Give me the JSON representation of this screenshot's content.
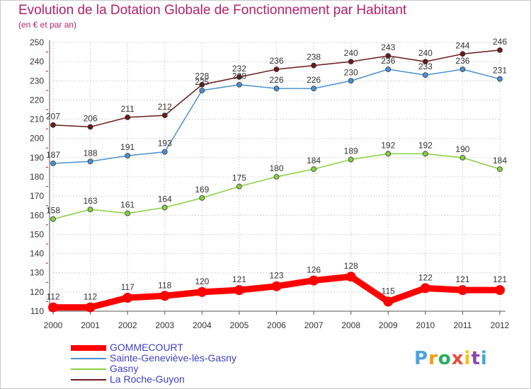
{
  "chart_data": {
    "type": "line",
    "title": "Evolution de la Dotation Globale de Fonctionnement par Habitant",
    "subtitle": "(en € et par an)",
    "x": [
      "2000",
      "2001",
      "2002",
      "2003",
      "2004",
      "2005",
      "2006",
      "2007",
      "2008",
      "2009",
      "2010",
      "2011",
      "2012"
    ],
    "ylim": [
      110,
      250
    ],
    "yticks": [
      110,
      120,
      130,
      140,
      150,
      160,
      170,
      180,
      190,
      200,
      210,
      220,
      230,
      240,
      250
    ],
    "grid": true,
    "legend_position": "bottom-left",
    "series": [
      {
        "name": "GOMMECOURT",
        "color": "#ff0000",
        "values": [
          112,
          112,
          117,
          118,
          120,
          121,
          123,
          126,
          128,
          115,
          122,
          121,
          121
        ]
      },
      {
        "name": "Sainte-Geneviève-lès-Gasny",
        "color": "#4a90d0",
        "values": [
          187,
          188,
          191,
          193,
          225,
          228,
          226,
          226,
          230,
          236,
          233,
          236,
          231
        ]
      },
      {
        "name": "Gasny",
        "color": "#88d040",
        "values": [
          158,
          163,
          161,
          164,
          169,
          175,
          180,
          184,
          189,
          192,
          192,
          190,
          184
        ]
      },
      {
        "name": "La Roche-Guyon",
        "color": "#6b1a1a",
        "values": [
          207,
          206,
          211,
          212,
          228,
          232,
          236,
          238,
          240,
          243,
          240,
          244,
          246
        ]
      }
    ]
  },
  "logo": {
    "letters": [
      "P",
      "r",
      "o",
      "x",
      "i",
      "t",
      "i"
    ],
    "colors": [
      "#4aa3df",
      "#f39c12",
      "#27ae60",
      "#e74c3c",
      "#f1c40f",
      "#8e44ad",
      "#4aa3df"
    ]
  }
}
